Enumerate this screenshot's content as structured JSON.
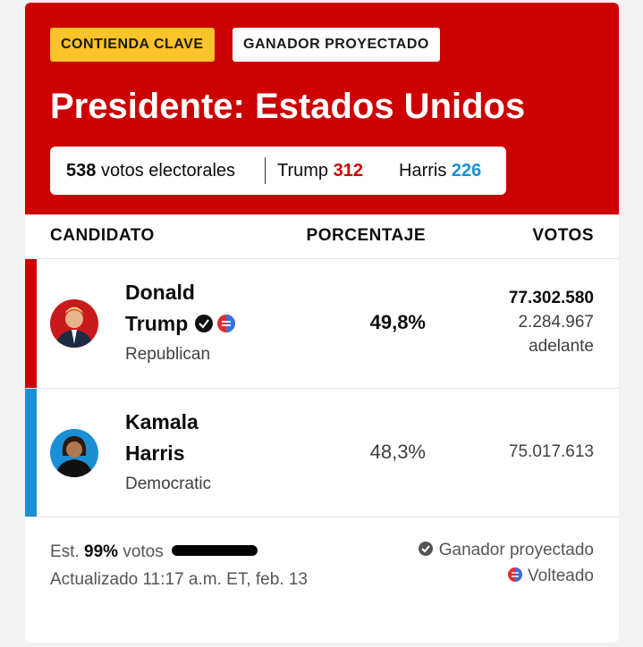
{
  "badges": [
    "CONTIENDA CLAVE",
    "GANADOR PROYECTADO"
  ],
  "title": "Presidente: Estados Unidos",
  "summary": {
    "electoral_votes": "538",
    "electoral_label": "votos electorales",
    "candidates": [
      {
        "name": "Trump",
        "votes": "312"
      },
      {
        "name": "Harris",
        "votes": "226"
      }
    ]
  },
  "table": {
    "headers": [
      "CANDIDATO",
      "PORCENTAJE",
      "VOTOS"
    ],
    "rows": [
      {
        "first_name": "Donald",
        "last_name": "Trump",
        "party": "Republican",
        "percent": "49,8%",
        "votes": "77.302.580",
        "lead": "2.284.967",
        "lead_label": "adelante"
      },
      {
        "first_name": "Kamala",
        "last_name": "Harris",
        "party": "Democratic",
        "percent": "48,3%",
        "votes": "75.017.613"
      }
    ]
  },
  "footer": {
    "est_prefix": "Est.",
    "est_value": "99%",
    "est_suffix": "votos",
    "updated": "Actualizado 11:17 a.m. ET, feb. 13",
    "legend": [
      "Ganador proyectado",
      "Volteado"
    ]
  }
}
